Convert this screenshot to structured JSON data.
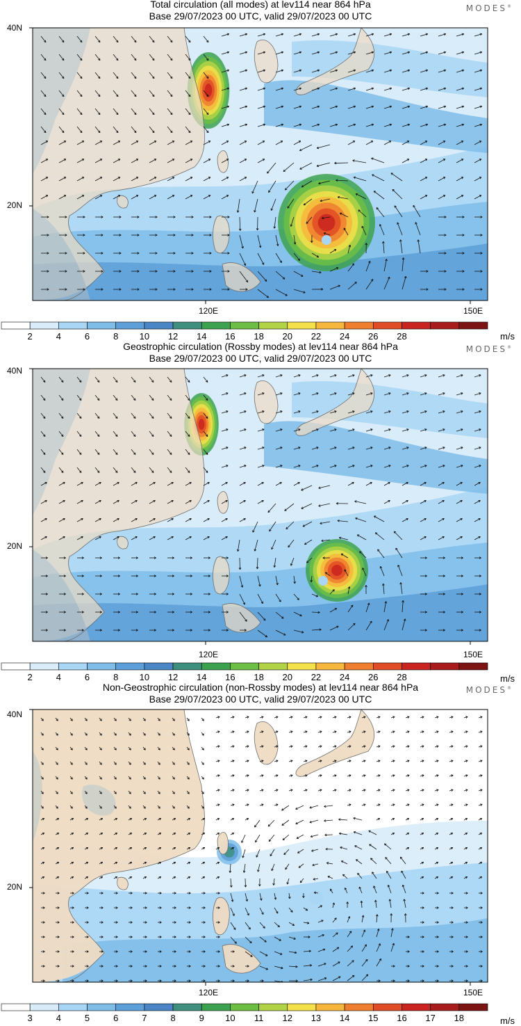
{
  "brand": "MODES",
  "brand_mark": "®",
  "panels": [
    {
      "title_line1": "Total circulation (all modes) at lev114 near 864 hPa",
      "title_line2": "Base 29/07/2023 00 UTC, valid 29/07/2023 00 UTC",
      "lat_labels": [
        "40N",
        "20N"
      ],
      "lon_labels": [
        "120E",
        "150E"
      ],
      "colorbar": {
        "labels": [
          "2",
          "4",
          "6",
          "8",
          "10",
          "12",
          "14",
          "16",
          "18",
          "20",
          "22",
          "24",
          "26",
          "28"
        ],
        "unit": "m/s",
        "colors": [
          "#ffffff",
          "#d8ecfa",
          "#a9d6f5",
          "#7fbde9",
          "#5d9fd8",
          "#4a86c6",
          "#3f8f7f",
          "#3da24f",
          "#6cbe45",
          "#b3d347",
          "#f3e04a",
          "#f6b73c",
          "#ef7f2f",
          "#e04c26",
          "#c9241f",
          "#a81c1c",
          "#7d1414"
        ]
      }
    },
    {
      "title_line1": "Geostrophic circulation (Rossby modes) at lev114 near 864 hPa",
      "title_line2": "Base 29/07/2023 00 UTC, valid 29/07/2023 00 UTC",
      "lat_labels": [
        "40N",
        "20N"
      ],
      "lon_labels": [
        "120E",
        "150E"
      ],
      "colorbar": {
        "labels": [
          "2",
          "4",
          "6",
          "8",
          "10",
          "12",
          "14",
          "16",
          "18",
          "20",
          "22",
          "24",
          "26",
          "28"
        ],
        "unit": "m/s",
        "colors": [
          "#ffffff",
          "#d8ecfa",
          "#a9d6f5",
          "#7fbde9",
          "#5d9fd8",
          "#4a86c6",
          "#3f8f7f",
          "#3da24f",
          "#6cbe45",
          "#b3d347",
          "#f3e04a",
          "#f6b73c",
          "#ef7f2f",
          "#e04c26",
          "#c9241f",
          "#a81c1c",
          "#7d1414"
        ]
      }
    },
    {
      "title_line1": "Non-Geostrophic circulation (non-Rossby modes) at lev114 near 864 hPa",
      "title_line2": "Base 29/07/2023 00 UTC, valid 29/07/2023 00 UTC",
      "lat_labels": [
        "40N",
        "20N"
      ],
      "lon_labels": [
        "120E",
        "150E"
      ],
      "colorbar": {
        "labels": [
          "3",
          "4",
          "5",
          "6",
          "7",
          "8",
          "9",
          "10",
          "11",
          "12",
          "13",
          "14",
          "15",
          "16",
          "17",
          "18"
        ],
        "unit": "m/s",
        "colors": [
          "#ffffff",
          "#d8ecfa",
          "#a9d6f5",
          "#7fbde9",
          "#5d9fd8",
          "#4a86c6",
          "#3f8f7f",
          "#3da24f",
          "#6cbe45",
          "#b3d347",
          "#f3e04a",
          "#f6b73c",
          "#ef7f2f",
          "#e04c26",
          "#c9241f",
          "#a81c1c",
          "#7d1414"
        ]
      }
    }
  ],
  "colors": {
    "land": "#efdcc4",
    "ocean_base": "#d8ecfa",
    "mountain": "#b8bdbf"
  }
}
